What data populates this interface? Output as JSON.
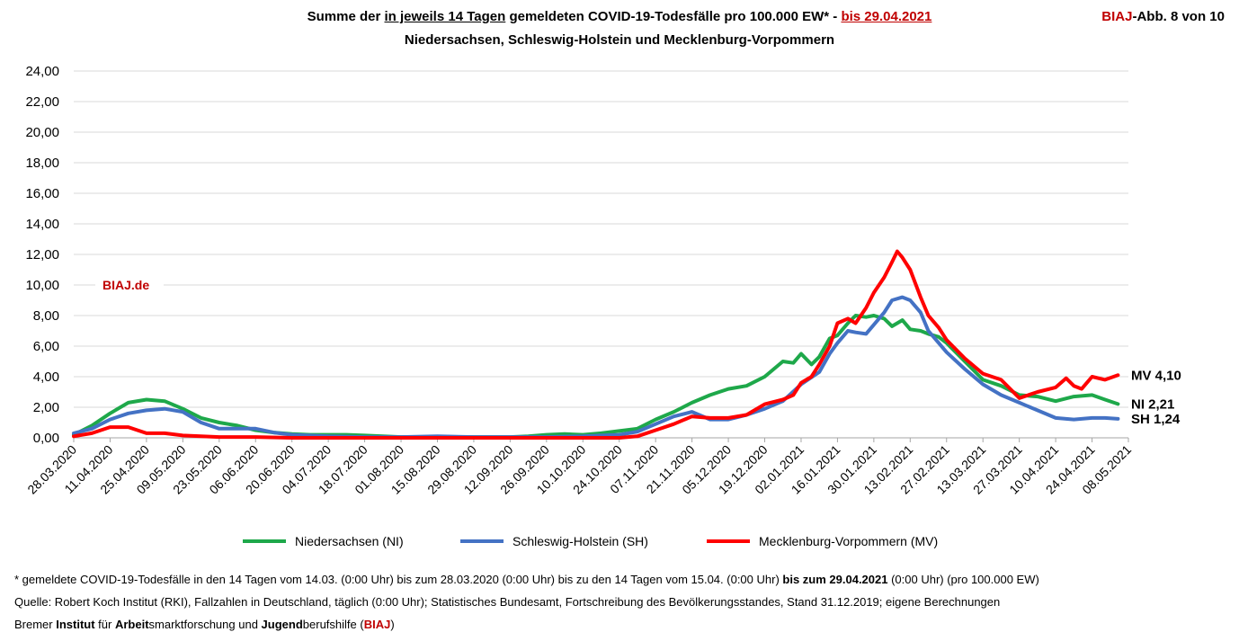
{
  "header": {
    "title_prefix": "Summe der ",
    "title_underlined": "in jeweils 14 Tagen",
    "title_middle": " gemeldeten COVID-19-Todesfälle pro 100.000 EW* - ",
    "title_date": "bis 29.04.2021",
    "subtitle": "Niedersachsen, Schleswig-Holstein und Mecklenburg-Vorpommern",
    "badge_red": "BIAJ",
    "badge_rest": "-Abb. 8 von 10"
  },
  "watermark": "BIAJ.de",
  "chart_data": {
    "type": "line",
    "ylim": [
      0,
      24
    ],
    "yticks": [
      "0,00",
      "2,00",
      "4,00",
      "6,00",
      "8,00",
      "10,00",
      "12,00",
      "14,00",
      "16,00",
      "18,00",
      "20,00",
      "22,00",
      "24,00"
    ],
    "xticks": [
      "28.03.2020",
      "11.04.2020",
      "25.04.2020",
      "09.05.2020",
      "23.05.2020",
      "06.06.2020",
      "20.06.2020",
      "04.07.2020",
      "18.07.2020",
      "01.08.2020",
      "15.08.2020",
      "29.08.2020",
      "12.09.2020",
      "26.09.2020",
      "10.10.2020",
      "24.10.2020",
      "07.11.2020",
      "21.11.2020",
      "05.12.2020",
      "19.12.2020",
      "02.01.2021",
      "16.01.2021",
      "30.01.2021",
      "13.02.2021",
      "27.02.2021",
      "13.03.2021",
      "27.03.2021",
      "10.04.2021",
      "24.04.2021",
      "08.05.2021"
    ],
    "x_start": "28.03.2020",
    "x_end": "08.05.2021",
    "grid": true,
    "legend_position": "bottom",
    "series": [
      {
        "name": "Niedersachsen (NI)",
        "color": "#1ea84a",
        "end_label": "NI 2,21",
        "points": [
          [
            "28.03.2020",
            0.2
          ],
          [
            "04.04.2020",
            0.8
          ],
          [
            "11.04.2020",
            1.6
          ],
          [
            "18.04.2020",
            2.3
          ],
          [
            "25.04.2020",
            2.5
          ],
          [
            "02.05.2020",
            2.4
          ],
          [
            "09.05.2020",
            1.9
          ],
          [
            "16.05.2020",
            1.3
          ],
          [
            "23.05.2020",
            1.0
          ],
          [
            "30.05.2020",
            0.8
          ],
          [
            "06.06.2020",
            0.5
          ],
          [
            "13.06.2020",
            0.35
          ],
          [
            "20.06.2020",
            0.25
          ],
          [
            "27.06.2020",
            0.2
          ],
          [
            "04.07.2020",
            0.2
          ],
          [
            "11.07.2020",
            0.2
          ],
          [
            "18.07.2020",
            0.15
          ],
          [
            "25.07.2020",
            0.1
          ],
          [
            "01.08.2020",
            0.05
          ],
          [
            "15.08.2020",
            0.05
          ],
          [
            "29.08.2020",
            0.05
          ],
          [
            "12.09.2020",
            0.05
          ],
          [
            "19.09.2020",
            0.1
          ],
          [
            "26.09.2020",
            0.2
          ],
          [
            "03.10.2020",
            0.25
          ],
          [
            "10.10.2020",
            0.2
          ],
          [
            "17.10.2020",
            0.3
          ],
          [
            "24.10.2020",
            0.45
          ],
          [
            "31.10.2020",
            0.6
          ],
          [
            "07.11.2020",
            1.2
          ],
          [
            "14.11.2020",
            1.7
          ],
          [
            "21.11.2020",
            2.3
          ],
          [
            "28.11.2020",
            2.8
          ],
          [
            "05.12.2020",
            3.2
          ],
          [
            "12.12.2020",
            3.4
          ],
          [
            "19.12.2020",
            4.0
          ],
          [
            "26.12.2020",
            5.0
          ],
          [
            "30.12.2020",
            4.9
          ],
          [
            "02.01.2021",
            5.5
          ],
          [
            "06.01.2021",
            4.8
          ],
          [
            "09.01.2021",
            5.3
          ],
          [
            "13.01.2021",
            6.5
          ],
          [
            "16.01.2021",
            6.7
          ],
          [
            "20.01.2021",
            7.5
          ],
          [
            "23.01.2021",
            8.0
          ],
          [
            "27.01.2021",
            7.9
          ],
          [
            "30.01.2021",
            8.0
          ],
          [
            "03.02.2021",
            7.8
          ],
          [
            "06.02.2021",
            7.3
          ],
          [
            "10.02.2021",
            7.7
          ],
          [
            "13.02.2021",
            7.1
          ],
          [
            "17.02.2021",
            7.0
          ],
          [
            "20.02.2021",
            6.8
          ],
          [
            "24.02.2021",
            6.6
          ],
          [
            "27.02.2021",
            6.2
          ],
          [
            "06.03.2021",
            5.0
          ],
          [
            "13.03.2021",
            3.8
          ],
          [
            "20.03.2021",
            3.4
          ],
          [
            "27.03.2021",
            2.8
          ],
          [
            "03.04.2021",
            2.7
          ],
          [
            "10.04.2021",
            2.4
          ],
          [
            "17.04.2021",
            2.7
          ],
          [
            "24.04.2021",
            2.8
          ],
          [
            "29.04.2021",
            2.5
          ],
          [
            "04.05.2021",
            2.21
          ]
        ]
      },
      {
        "name": "Schleswig-Holstein (SH)",
        "color": "#4472c4",
        "end_label": "SH 1,24",
        "points": [
          [
            "28.03.2020",
            0.3
          ],
          [
            "04.04.2020",
            0.6
          ],
          [
            "11.04.2020",
            1.2
          ],
          [
            "18.04.2020",
            1.6
          ],
          [
            "25.04.2020",
            1.8
          ],
          [
            "02.05.2020",
            1.9
          ],
          [
            "09.05.2020",
            1.7
          ],
          [
            "16.05.2020",
            1.0
          ],
          [
            "23.05.2020",
            0.6
          ],
          [
            "30.05.2020",
            0.6
          ],
          [
            "06.06.2020",
            0.6
          ],
          [
            "13.06.2020",
            0.35
          ],
          [
            "20.06.2020",
            0.2
          ],
          [
            "04.07.2020",
            0.1
          ],
          [
            "18.07.2020",
            0.05
          ],
          [
            "01.08.2020",
            0.05
          ],
          [
            "15.08.2020",
            0.1
          ],
          [
            "29.08.2020",
            0.05
          ],
          [
            "12.09.2020",
            0.05
          ],
          [
            "26.09.2020",
            0.05
          ],
          [
            "10.10.2020",
            0.1
          ],
          [
            "24.10.2020",
            0.2
          ],
          [
            "31.10.2020",
            0.4
          ],
          [
            "07.11.2020",
            0.9
          ],
          [
            "14.11.2020",
            1.4
          ],
          [
            "21.11.2020",
            1.7
          ],
          [
            "28.11.2020",
            1.2
          ],
          [
            "05.12.2020",
            1.2
          ],
          [
            "12.12.2020",
            1.5
          ],
          [
            "19.12.2020",
            1.9
          ],
          [
            "26.12.2020",
            2.4
          ],
          [
            "02.01.2021",
            3.5
          ],
          [
            "09.01.2021",
            4.3
          ],
          [
            "13.01.2021",
            5.5
          ],
          [
            "16.01.2021",
            6.2
          ],
          [
            "20.01.2021",
            7.0
          ],
          [
            "23.01.2021",
            6.9
          ],
          [
            "27.01.2021",
            6.8
          ],
          [
            "30.01.2021",
            7.4
          ],
          [
            "03.02.2021",
            8.2
          ],
          [
            "06.02.2021",
            9.0
          ],
          [
            "10.02.2021",
            9.2
          ],
          [
            "13.02.2021",
            9.0
          ],
          [
            "17.02.2021",
            8.2
          ],
          [
            "20.02.2021",
            7.0
          ],
          [
            "24.02.2021",
            6.2
          ],
          [
            "27.02.2021",
            5.6
          ],
          [
            "06.03.2021",
            4.5
          ],
          [
            "13.03.2021",
            3.5
          ],
          [
            "20.03.2021",
            2.8
          ],
          [
            "27.03.2021",
            2.3
          ],
          [
            "03.04.2021",
            1.8
          ],
          [
            "10.04.2021",
            1.3
          ],
          [
            "17.04.2021",
            1.2
          ],
          [
            "24.04.2021",
            1.3
          ],
          [
            "29.04.2021",
            1.3
          ],
          [
            "04.05.2021",
            1.24
          ]
        ]
      },
      {
        "name": "Mecklenburg-Vorpommern (MV)",
        "color": "#ff0000",
        "end_label": "MV 4,10",
        "points": [
          [
            "28.03.2020",
            0.1
          ],
          [
            "04.04.2020",
            0.3
          ],
          [
            "11.04.2020",
            0.7
          ],
          [
            "18.04.2020",
            0.7
          ],
          [
            "25.04.2020",
            0.3
          ],
          [
            "02.05.2020",
            0.3
          ],
          [
            "09.05.2020",
            0.15
          ],
          [
            "16.05.2020",
            0.1
          ],
          [
            "23.05.2020",
            0.05
          ],
          [
            "06.06.2020",
            0.05
          ],
          [
            "20.06.2020",
            0.0
          ],
          [
            "04.07.2020",
            0.0
          ],
          [
            "01.08.2020",
            0.0
          ],
          [
            "29.08.2020",
            0.0
          ],
          [
            "26.09.2020",
            0.0
          ],
          [
            "24.10.2020",
            0.0
          ],
          [
            "31.10.2020",
            0.1
          ],
          [
            "07.11.2020",
            0.5
          ],
          [
            "14.11.2020",
            0.9
          ],
          [
            "21.11.2020",
            1.4
          ],
          [
            "28.11.2020",
            1.3
          ],
          [
            "05.12.2020",
            1.3
          ],
          [
            "12.12.2020",
            1.5
          ],
          [
            "19.12.2020",
            2.2
          ],
          [
            "26.12.2020",
            2.5
          ],
          [
            "30.12.2020",
            2.8
          ],
          [
            "02.01.2021",
            3.6
          ],
          [
            "06.01.2021",
            4.0
          ],
          [
            "09.01.2021",
            4.8
          ],
          [
            "13.01.2021",
            6.0
          ],
          [
            "16.01.2021",
            7.5
          ],
          [
            "20.01.2021",
            7.8
          ],
          [
            "23.01.2021",
            7.5
          ],
          [
            "27.01.2021",
            8.5
          ],
          [
            "30.01.2021",
            9.5
          ],
          [
            "03.02.2021",
            10.5
          ],
          [
            "06.02.2021",
            11.5
          ],
          [
            "08.02.2021",
            12.2
          ],
          [
            "10.02.2021",
            11.8
          ],
          [
            "13.02.2021",
            11.0
          ],
          [
            "17.02.2021",
            9.2
          ],
          [
            "20.02.2021",
            8.0
          ],
          [
            "24.02.2021",
            7.2
          ],
          [
            "27.02.2021",
            6.4
          ],
          [
            "06.03.2021",
            5.2
          ],
          [
            "13.03.2021",
            4.2
          ],
          [
            "20.03.2021",
            3.8
          ],
          [
            "27.03.2021",
            2.6
          ],
          [
            "03.04.2021",
            3.0
          ],
          [
            "10.04.2021",
            3.3
          ],
          [
            "14.04.2021",
            3.9
          ],
          [
            "17.04.2021",
            3.4
          ],
          [
            "20.04.2021",
            3.2
          ],
          [
            "24.04.2021",
            4.0
          ],
          [
            "29.04.2021",
            3.8
          ],
          [
            "04.05.2021",
            4.1
          ]
        ]
      }
    ]
  },
  "footer": {
    "note_prefix": "* gemeldete COVID-19-Todesfälle in den 14 Tagen vom 14.03. (0:00 Uhr) bis zum 28.03.2020 (0:00 Uhr) bis zu den 14 Tagen vom 15.04. (0:00 Uhr) ",
    "note_bold": "bis zum 29.04.2021",
    "note_suffix": " (0:00 Uhr) (pro 100.000 EW)",
    "source": "Quelle: Robert Koch Institut (RKI), Fallzahlen in Deutschland, täglich (0:00 Uhr); Statistisches Bundesamt, Fortschreibung des Bevölkerungsstandes, Stand 31.12.2019; eigene Berechnungen",
    "org_1": "Bremer ",
    "org_2": "Institut",
    "org_3": " für ",
    "org_4": "Arbeit",
    "org_5": "smarktforschung und ",
    "org_6": "Jugend",
    "org_7": "berufshilfe (",
    "org_8": "BIAJ",
    "org_9": ")"
  }
}
